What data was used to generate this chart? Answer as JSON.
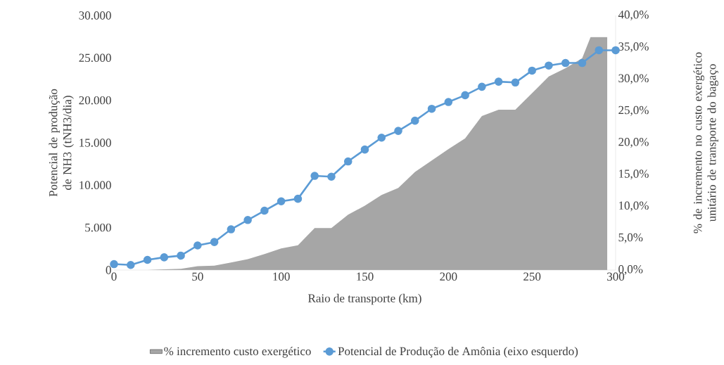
{
  "chart_data": {
    "type": "line",
    "xlabel": "Raio de transporte (km)",
    "ylabel": "Potencial de produção de NH3 (tNH3/dia)",
    "y2label": "% de incremento no custo exergético unitário de transporte do bagaço",
    "x": [
      0,
      10,
      20,
      30,
      40,
      50,
      60,
      70,
      80,
      90,
      100,
      110,
      120,
      130,
      140,
      150,
      160,
      170,
      180,
      190,
      200,
      210,
      220,
      230,
      240,
      250,
      260,
      270,
      280,
      290,
      300
    ],
    "xlim": [
      0,
      300
    ],
    "xticks": [
      0,
      50,
      100,
      150,
      200,
      250,
      300
    ],
    "ylim": [
      0,
      30000
    ],
    "yticks": [
      {
        "value": 0,
        "label": "0"
      },
      {
        "value": 5000,
        "label": "5.000"
      },
      {
        "value": 10000,
        "label": "10.000"
      },
      {
        "value": 15000,
        "label": "15.000"
      },
      {
        "value": 20000,
        "label": "20.000"
      },
      {
        "value": 25000,
        "label": "25.000"
      },
      {
        "value": 30000,
        "label": "30.000"
      }
    ],
    "y2lim": [
      0,
      40
    ],
    "y2ticks": [
      {
        "value": 0,
        "label": "0,0%"
      },
      {
        "value": 5,
        "label": "5,0%"
      },
      {
        "value": 10,
        "label": "10,0%"
      },
      {
        "value": 15,
        "label": "15,0%"
      },
      {
        "value": 20,
        "label": "20,0%"
      },
      {
        "value": 25,
        "label": "25,0%"
      },
      {
        "value": 30,
        "label": "30,0%"
      },
      {
        "value": 35,
        "label": "35,0%"
      },
      {
        "value": 40,
        "label": "40,0%"
      }
    ],
    "series": [
      {
        "name": "% incremento custo exergético",
        "type": "area",
        "axis": "y2",
        "color": "#a6a6a6",
        "x": [
          0,
          10,
          20,
          30,
          40,
          50,
          60,
          70,
          80,
          90,
          100,
          110,
          120,
          130,
          140,
          150,
          160,
          170,
          180,
          190,
          200,
          210,
          220,
          230,
          240,
          250,
          260,
          270,
          280,
          285,
          295
        ],
        "values": [
          0,
          0,
          0,
          0.1,
          0.2,
          0.6,
          0.7,
          1.2,
          1.7,
          2.5,
          3.4,
          3.9,
          6.6,
          6.6,
          8.7,
          10.1,
          11.8,
          12.9,
          15.4,
          17.2,
          19.0,
          20.7,
          24.2,
          25.2,
          25.2,
          27.8,
          30.4,
          31.7,
          33.3,
          36.6,
          36.6
        ]
      },
      {
        "name": "Potencial de Produção de Amônia (eixo esquerdo)",
        "color": "#5b9bd5",
        "marker": "circle",
        "values": [
          700,
          600,
          1200,
          1500,
          1700,
          2900,
          3300,
          4800,
          5900,
          7000,
          8100,
          8400,
          11100,
          11000,
          12800,
          14200,
          15600,
          16400,
          17600,
          19000,
          19800,
          20600,
          21600,
          22200,
          22100,
          23500,
          24100,
          24400,
          24400,
          25900,
          25900
        ]
      }
    ],
    "grid": false,
    "legend": "bottom"
  }
}
